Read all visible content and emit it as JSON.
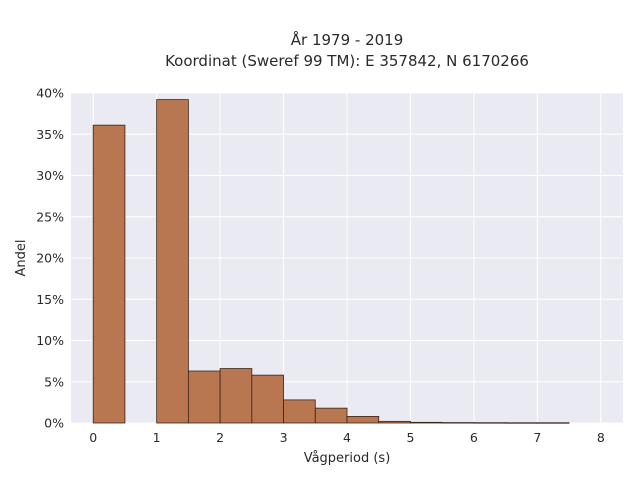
{
  "chart_data": {
    "type": "bar",
    "title_line1": "År 1979 - 2019",
    "title_line2": "Koordinat (Sweref 99 TM): E 357842, N 6170266",
    "xlabel": "Vågperiod (s)",
    "ylabel": "Andel",
    "xlim": [
      -0.35,
      8.35
    ],
    "ylim": [
      0,
      0.4
    ],
    "x_ticks": [
      0,
      1,
      2,
      3,
      4,
      5,
      6,
      7,
      8
    ],
    "x_tick_labels": [
      "0",
      "1",
      "2",
      "3",
      "4",
      "5",
      "6",
      "7",
      "8"
    ],
    "y_ticks": [
      0,
      0.05,
      0.1,
      0.15,
      0.2,
      0.25,
      0.3,
      0.35,
      0.4
    ],
    "y_tick_labels": [
      "0%",
      "5%",
      "10%",
      "15%",
      "20%",
      "25%",
      "30%",
      "35%",
      "40%"
    ],
    "bin_width": 0.5,
    "bins": [
      {
        "x0": 0.0,
        "value": 0.361
      },
      {
        "x0": 0.5,
        "value": 0.0
      },
      {
        "x0": 1.0,
        "value": 0.392
      },
      {
        "x0": 1.5,
        "value": 0.063
      },
      {
        "x0": 2.0,
        "value": 0.066
      },
      {
        "x0": 2.5,
        "value": 0.058
      },
      {
        "x0": 3.0,
        "value": 0.028
      },
      {
        "x0": 3.5,
        "value": 0.018
      },
      {
        "x0": 4.0,
        "value": 0.008
      },
      {
        "x0": 4.5,
        "value": 0.002
      },
      {
        "x0": 5.0,
        "value": 0.0008
      },
      {
        "x0": 5.5,
        "value": 0.0005
      },
      {
        "x0": 6.0,
        "value": 0.0004
      },
      {
        "x0": 6.5,
        "value": 0.0003
      },
      {
        "x0": 7.0,
        "value": 0.0003
      }
    ],
    "grid": true,
    "colors": {
      "bar_fill": "#b87750",
      "bar_edge": "#3a2418",
      "plot_background": "#eaeaf2",
      "grid": "#ffffff"
    }
  }
}
